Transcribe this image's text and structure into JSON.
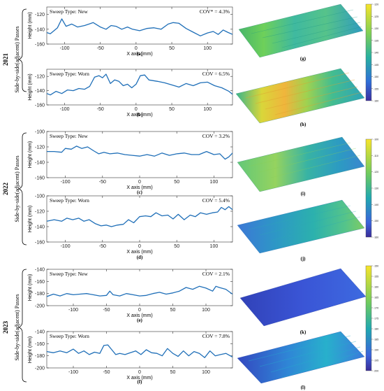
{
  "figure": {
    "row_label": "Side-by-side(adjacent) Passes",
    "unit_x": "X axis (mm)",
    "unit_y": "Height (mm)"
  },
  "chart_data": [
    {
      "type": "line",
      "year": "2021",
      "panel": "(a)",
      "sweep": "Sweep Type: New",
      "cov": "COV* = 4.3%",
      "xlim": [
        -125,
        135
      ],
      "ylim": [
        -160,
        -110
      ],
      "xticks": [
        -100,
        -50,
        0,
        50,
        100
      ],
      "yticks": [
        -160,
        -140,
        -120
      ],
      "x": [
        -130,
        -120,
        -110,
        -104,
        -98,
        -90,
        -82,
        -72,
        -60,
        -50,
        -42,
        -35,
        -28,
        -20,
        -12,
        -5,
        5,
        15,
        25,
        35,
        45,
        52,
        60,
        70,
        80,
        90,
        100,
        108,
        115,
        122,
        128,
        135
      ],
      "y": [
        -143,
        -146,
        -138,
        -126,
        -136,
        -133,
        -137,
        -135,
        -131,
        -137,
        -140,
        -135,
        -136,
        -140,
        -137,
        -140,
        -142,
        -139,
        -138,
        -140,
        -133,
        -131,
        -132,
        -139,
        -144,
        -149,
        -145,
        -143,
        -147,
        -141,
        -144,
        -147
      ]
    },
    {
      "type": "line",
      "year": "2021",
      "panel": "(b)",
      "sweep": "Sweep Type: Worn",
      "cov": "COV = 6.5%",
      "xlim": [
        -125,
        135
      ],
      "ylim": [
        -160,
        -110
      ],
      "xticks": [
        -100,
        -50,
        0,
        50,
        100
      ],
      "yticks": [
        -160,
        -140,
        -120
      ],
      "x": [
        -130,
        -120,
        -112,
        -104,
        -96,
        -88,
        -80,
        -72,
        -65,
        -58,
        -52,
        -47,
        -42,
        -36,
        -30,
        -24,
        -18,
        -12,
        -6,
        0,
        6,
        12,
        18,
        24,
        30,
        40,
        50,
        60,
        70,
        80,
        90,
        100,
        110,
        120,
        130,
        135
      ],
      "y": [
        -142,
        -146,
        -141,
        -144,
        -139,
        -140,
        -137,
        -138,
        -134,
        -121,
        -119,
        -122,
        -117,
        -130,
        -125,
        -127,
        -133,
        -131,
        -136,
        -131,
        -119,
        -118,
        -125,
        -126,
        -127,
        -129,
        -132,
        -135,
        -130,
        -133,
        -129,
        -128,
        -133,
        -136,
        -141,
        -145
      ]
    },
    {
      "type": "line",
      "year": "2022",
      "panel": "(c)",
      "sweep": "Sweep Type: New",
      "cov": "COV = 3.2%",
      "xlim": [
        -125,
        125
      ],
      "ylim": [
        -160,
        -100
      ],
      "xticks": [
        -100,
        -50,
        0,
        50,
        100
      ],
      "yticks": [
        -160,
        -140,
        -120,
        -100
      ],
      "x": [
        -125,
        -115,
        -105,
        -100,
        -92,
        -85,
        -78,
        -70,
        -62,
        -55,
        -48,
        -40,
        -30,
        -20,
        -10,
        0,
        10,
        20,
        30,
        40,
        50,
        60,
        70,
        80,
        90,
        100,
        108,
        115,
        120,
        125
      ],
      "y": [
        -126,
        -126,
        -127,
        -122,
        -123,
        -119,
        -122,
        -120,
        -125,
        -129,
        -127,
        -129,
        -128,
        -130,
        -131,
        -132,
        -130,
        -132,
        -128,
        -131,
        -129,
        -128,
        -130,
        -130,
        -126,
        -130,
        -129,
        -136,
        -133,
        -128
      ]
    },
    {
      "type": "line",
      "year": "2022",
      "panel": "(d)",
      "sweep": "Sweep Type: Worn",
      "cov": "COV = 5.4%",
      "xlim": [
        -125,
        125
      ],
      "ylim": [
        -160,
        -100
      ],
      "xticks": [
        -100,
        -50,
        0,
        50,
        100
      ],
      "yticks": [
        -160,
        -140,
        -120,
        -100
      ],
      "x": [
        -125,
        -115,
        -105,
        -98,
        -90,
        -82,
        -75,
        -68,
        -60,
        -52,
        -45,
        -38,
        -30,
        -22,
        -15,
        -8,
        0,
        8,
        15,
        22,
        30,
        38,
        45,
        52,
        60,
        68,
        75,
        82,
        90,
        98,
        105,
        110,
        115,
        120,
        125
      ],
      "y": [
        -133,
        -131,
        -133,
        -129,
        -131,
        -129,
        -133,
        -131,
        -136,
        -139,
        -138,
        -140,
        -138,
        -137,
        -131,
        -135,
        -127,
        -126,
        -127,
        -122,
        -126,
        -125,
        -130,
        -124,
        -131,
        -125,
        -127,
        -122,
        -124,
        -122,
        -121,
        -115,
        -118,
        -114,
        -118
      ]
    },
    {
      "type": "line",
      "year": "2023",
      "panel": "(e)",
      "sweep": "Sweep Type: New",
      "cov": "COV = 2.1%",
      "xlim": [
        -140,
        140
      ],
      "ylim": [
        -200,
        -140
      ],
      "xticks": [
        -100,
        -50,
        0,
        50,
        100
      ],
      "yticks": [
        -200,
        -180,
        -160,
        -140
      ],
      "x": [
        -140,
        -130,
        -120,
        -110,
        -100,
        -90,
        -80,
        -70,
        -60,
        -50,
        -45,
        -40,
        -30,
        -20,
        -10,
        0,
        10,
        20,
        30,
        40,
        50,
        60,
        70,
        80,
        90,
        100,
        110,
        115,
        120,
        130,
        140
      ],
      "y": [
        -185,
        -181,
        -184,
        -180,
        -182,
        -181,
        -180,
        -182,
        -184,
        -183,
        -176,
        -182,
        -184,
        -180,
        -182,
        -184,
        -183,
        -180,
        -178,
        -181,
        -179,
        -176,
        -170,
        -173,
        -168,
        -171,
        -176,
        -168,
        -170,
        -173,
        -181
      ]
    },
    {
      "type": "line",
      "year": "2023",
      "panel": "(f)",
      "sweep": "Sweep Type: Worn",
      "cov": "COV = 7.8%",
      "xlim": [
        -140,
        140
      ],
      "ylim": [
        -200,
        -140
      ],
      "xticks": [
        -100,
        -50,
        0,
        50,
        100
      ],
      "yticks": [
        -200,
        -180,
        -160,
        -140
      ],
      "x": [
        -140,
        -130,
        -120,
        -110,
        -100,
        -92,
        -84,
        -76,
        -68,
        -60,
        -54,
        -48,
        -42,
        -36,
        -30,
        -22,
        -14,
        -6,
        2,
        10,
        18,
        26,
        34,
        42,
        50,
        58,
        66,
        74,
        82,
        90,
        98,
        106,
        114,
        122,
        130,
        140
      ],
      "y": [
        -173,
        -175,
        -172,
        -175,
        -169,
        -176,
        -172,
        -178,
        -174,
        -176,
        -163,
        -162,
        -170,
        -178,
        -176,
        -178,
        -175,
        -172,
        -178,
        -170,
        -175,
        -176,
        -180,
        -168,
        -176,
        -181,
        -172,
        -180,
        -173,
        -176,
        -183,
        -172,
        -180,
        -178,
        -176,
        -182
      ]
    }
  ],
  "surfaces": [
    {
      "label": "(g)",
      "palette": "warm-green",
      "colorbar_ticks": [
        "-120",
        "-125",
        "-130",
        "-135",
        "-140",
        "-145",
        "-150",
        "-155",
        "-160"
      ]
    },
    {
      "label": "(h)",
      "palette": "warm-green-yellow",
      "colorbar_ticks": []
    },
    {
      "label": "(i)",
      "palette": "green-teal",
      "colorbar_ticks": [
        "-100",
        "-110",
        "-120",
        "-130",
        "-140",
        "-150",
        "-160"
      ]
    },
    {
      "label": "(j)",
      "palette": "blue-teal",
      "colorbar_ticks": []
    },
    {
      "label": "(k)",
      "palette": "blue",
      "colorbar_ticks": [
        "-150",
        "-155",
        "-160",
        "-165",
        "-170",
        "-175",
        "-180",
        "-185",
        "-190",
        "-195",
        "-200"
      ]
    },
    {
      "label": "(l)",
      "palette": "blue-cyan",
      "colorbar_ticks": []
    }
  ],
  "colors": {
    "line": "#1f6fb8"
  }
}
